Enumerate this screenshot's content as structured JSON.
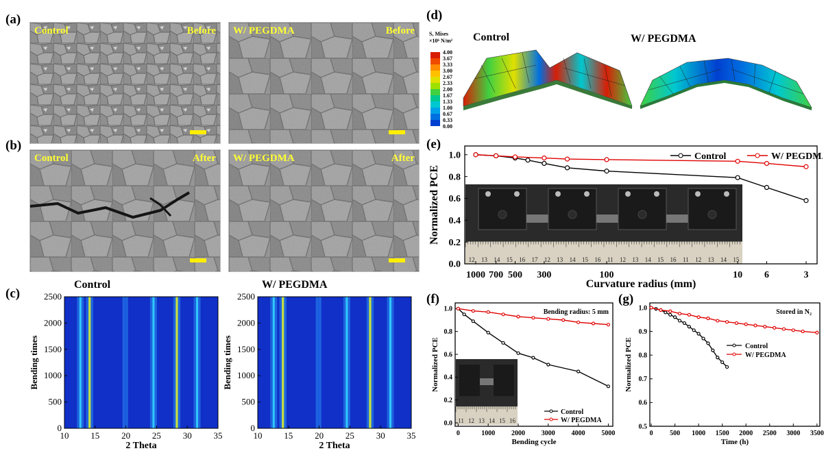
{
  "panels": {
    "a": {
      "label": "(a)",
      "left": {
        "tl": "Control",
        "tr": "Before"
      },
      "right": {
        "tl": "W/ PEGDMA",
        "tr": "Before"
      }
    },
    "b": {
      "label": "(b)",
      "left": {
        "tl": "Control",
        "tr": "After"
      },
      "right": {
        "tl": "W/ PEGDMA",
        "tr": "After"
      }
    },
    "c": {
      "label": "(c)",
      "left_title": "Control",
      "right_title": "W/ PEGDMA",
      "xlabel": "2 Theta",
      "ylabel": "Bending times"
    },
    "d": {
      "label": "(d)",
      "left_title": "Control",
      "right_title": "W/ PEGDMA",
      "legend_title1": "S, Mises",
      "legend_title2": "×10⁶ N/m²"
    },
    "e": {
      "label": "(e)",
      "xlabel": "Curvature radius (mm)",
      "ylabel": "Normalized PCE"
    },
    "f": {
      "label": "(f)",
      "xlabel": "Bending cycle",
      "ylabel": "Normalized PCE",
      "note": "Bending radius: 5 mm"
    },
    "g": {
      "label": "(g)",
      "xlabel": "Time (h)",
      "ylabel": "Normalized PCE",
      "note": "Stored in N₂"
    }
  },
  "legend_labels": [
    "4.00",
    "3.67",
    "3.33",
    "3.00",
    "2.67",
    "2.33",
    "2.00",
    "1.67",
    "1.33",
    "1.00",
    "0.67",
    "0.33",
    "0.00"
  ],
  "legend_colors": [
    "#d81e05",
    "#f04a00",
    "#ff8c00",
    "#ffc000",
    "#e0e000",
    "#a0e000",
    "#40d040",
    "#00c890",
    "#00c8d0",
    "#00a0e8",
    "#0070e0",
    "#0040d0",
    "#0010b0"
  ],
  "ruler_labels": [
    "12",
    "13",
    "14",
    "15",
    "16",
    "17",
    "12",
    "13",
    "14",
    "15",
    "16",
    "11",
    "12",
    "13",
    "14",
    "15",
    "16",
    "11",
    "12",
    "13",
    "14",
    "15"
  ],
  "ruler_labels_f": [
    "11",
    "12",
    "13",
    "14",
    "15",
    "16"
  ],
  "chart_data": [
    {
      "type": "heatmap",
      "title": "Control",
      "xlabel": "2 Theta",
      "ylabel": "Bending times",
      "xlim": [
        10,
        35
      ],
      "ylim": [
        0,
        2500
      ],
      "xticks": [
        10,
        15,
        20,
        25,
        30,
        35
      ],
      "yticks": [
        0,
        500,
        1000,
        1500,
        2000,
        2500
      ],
      "peaks": [
        {
          "x": 12.6,
          "intensity": "medium"
        },
        {
          "x": 14.1,
          "intensity": "high"
        },
        {
          "x": 19.9,
          "intensity": "low"
        },
        {
          "x": 24.5,
          "intensity": "medium"
        },
        {
          "x": 28.3,
          "intensity": "high"
        },
        {
          "x": 31.6,
          "intensity": "medium"
        }
      ]
    },
    {
      "type": "heatmap",
      "title": "W/ PEGDMA",
      "xlabel": "2 Theta",
      "ylabel": "Bending times",
      "xlim": [
        10,
        35
      ],
      "ylim": [
        0,
        2500
      ],
      "xticks": [
        10,
        15,
        20,
        25,
        30,
        35
      ],
      "yticks": [
        0,
        500,
        1000,
        1500,
        2000,
        2500
      ],
      "peaks": [
        {
          "x": 12.6,
          "intensity": "medium"
        },
        {
          "x": 14.1,
          "intensity": "high"
        },
        {
          "x": 19.9,
          "intensity": "low"
        },
        {
          "x": 24.5,
          "intensity": "medium"
        },
        {
          "x": 28.3,
          "intensity": "high"
        },
        {
          "x": 31.6,
          "intensity": "medium"
        }
      ]
    },
    {
      "type": "line",
      "xlabel": "Curvature radius (mm)",
      "ylabel": "Normalized PCE",
      "x_scale": "log-reversed",
      "xticks": [
        1000,
        700,
        500,
        300,
        100,
        10,
        6,
        3
      ],
      "yticks": [
        0.0,
        0.2,
        0.4,
        0.6,
        0.8,
        1.0
      ],
      "ylim": [
        0,
        1.08
      ],
      "legend": "top-right",
      "series": [
        {
          "name": "Control",
          "color": "#000000",
          "x": [
            1000,
            700,
            500,
            400,
            300,
            200,
            100,
            10,
            6,
            3
          ],
          "y": [
            1.0,
            0.99,
            0.97,
            0.95,
            0.92,
            0.88,
            0.85,
            0.79,
            0.7,
            0.58
          ]
        },
        {
          "name": "W/ PEGDMA",
          "color": "#e00000",
          "x": [
            1000,
            700,
            500,
            300,
            200,
            100,
            10,
            6,
            3
          ],
          "y": [
            1.0,
            0.99,
            0.98,
            0.97,
            0.96,
            0.955,
            0.94,
            0.92,
            0.89
          ]
        }
      ]
    },
    {
      "type": "line",
      "xlabel": "Bending cycle",
      "ylabel": "Normalized PCE",
      "xticks": [
        0,
        1000,
        2000,
        3000,
        4000,
        5000
      ],
      "yticks": [
        0.0,
        0.2,
        0.4,
        0.6,
        0.8,
        1.0
      ],
      "xlim": [
        -100,
        5150
      ],
      "ylim": [
        -0.03,
        1.05
      ],
      "legend": "bottom-right",
      "series": [
        {
          "name": "Control",
          "color": "#000000",
          "x": [
            0,
            200,
            500,
            1000,
            1500,
            2000,
            2500,
            3000,
            4000,
            5000
          ],
          "y": [
            1.0,
            0.95,
            0.89,
            0.79,
            0.7,
            0.61,
            0.57,
            0.51,
            0.45,
            0.32
          ]
        },
        {
          "name": "W/ PEGDMA",
          "color": "#e00000",
          "x": [
            0,
            500,
            1000,
            1500,
            2000,
            2500,
            3000,
            3500,
            4000,
            4500,
            5000
          ],
          "y": [
            1.0,
            0.98,
            0.97,
            0.95,
            0.93,
            0.92,
            0.91,
            0.9,
            0.88,
            0.87,
            0.86
          ]
        }
      ]
    },
    {
      "type": "line",
      "xlabel": "Time (h)",
      "ylabel": "Normalized PCE",
      "xticks": [
        0,
        500,
        1000,
        1500,
        2000,
        2500,
        3000,
        3500
      ],
      "yticks": [
        0.5,
        0.6,
        0.7,
        0.8,
        0.9,
        1.0
      ],
      "xlim": [
        -30,
        3560
      ],
      "ylim": [
        0.5,
        1.02
      ],
      "legend": "center-right",
      "series": [
        {
          "name": "Control",
          "color": "#000000",
          "x": [
            0,
            100,
            200,
            300,
            400,
            500,
            600,
            700,
            800,
            900,
            1000,
            1100,
            1200,
            1300,
            1400,
            1500,
            1600
          ],
          "y": [
            1.0,
            0.995,
            0.99,
            0.98,
            0.97,
            0.96,
            0.945,
            0.935,
            0.92,
            0.905,
            0.89,
            0.87,
            0.85,
            0.82,
            0.79,
            0.77,
            0.75
          ]
        },
        {
          "name": "W/ PEGDMA",
          "color": "#e00000",
          "x": [
            0,
            200,
            400,
            600,
            800,
            1000,
            1200,
            1400,
            1600,
            1800,
            2000,
            2200,
            2400,
            2600,
            2800,
            3000,
            3200,
            3500
          ],
          "y": [
            1.0,
            0.99,
            0.985,
            0.975,
            0.97,
            0.96,
            0.955,
            0.945,
            0.94,
            0.935,
            0.93,
            0.925,
            0.92,
            0.915,
            0.91,
            0.905,
            0.9,
            0.895
          ]
        }
      ]
    }
  ]
}
